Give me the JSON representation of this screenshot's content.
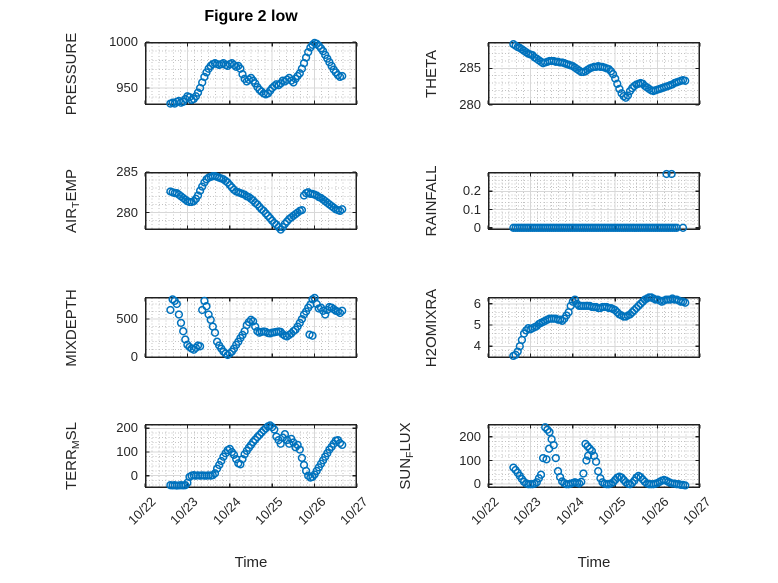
{
  "chart_data": {
    "type": "scatter",
    "title": "Figure 2 low",
    "marker_color": "#0072BD",
    "axes_color": "#202020",
    "x_axis": {
      "label": "Time",
      "ticklabels": [
        "10/22",
        "10/23",
        "10/24",
        "10/25",
        "10/26",
        "10/27"
      ],
      "xlim": [
        0,
        5
      ],
      "minor_divisions_per_day": 6
    },
    "subplots": [
      {
        "name": "pressure",
        "ylabel": "PRESSURE",
        "ylabel_parts": [
          {
            "text": "PRESSURE",
            "sub": false
          }
        ],
        "col": 0,
        "row": 0,
        "ylim": [
          931.5,
          1000
        ],
        "yticks": [
          950,
          1000
        ],
        "ytick_labels": [
          "950",
          "1000"
        ],
        "y_minor_step": 10,
        "x_start": 0.6,
        "x_step": 0.05,
        "y": [
          933,
          934,
          933,
          935,
          936,
          934,
          935,
          938,
          941,
          940,
          937,
          938,
          941,
          945,
          950,
          956,
          962,
          967,
          971,
          974,
          976,
          977,
          976,
          975,
          976,
          977,
          975,
          974,
          976,
          977,
          975,
          973,
          974,
          971,
          965,
          960,
          957,
          959,
          961,
          958,
          955,
          951,
          948,
          946,
          944,
          943,
          944,
          947,
          950,
          952,
          954,
          953,
          955,
          958,
          957,
          959,
          961,
          958,
          956,
          960,
          963,
          966,
          971,
          977,
          983,
          989,
          994,
          997,
          999,
          998,
          996,
          993,
          990,
          986,
          982,
          978,
          974,
          970,
          967,
          964,
          962,
          963
        ],
        "extra_points": []
      },
      {
        "name": "theta",
        "ylabel": "THETA",
        "ylabel_parts": [
          {
            "text": "THETA",
            "sub": false
          }
        ],
        "col": 1,
        "row": 0,
        "ylim": [
          280,
          288.6
        ],
        "yticks": [
          280,
          285
        ],
        "ytick_labels": [
          "280",
          "285"
        ],
        "y_minor_step": 1,
        "x_start": 0.6,
        "x_step": 0.05,
        "y": [
          288.3,
          288.1,
          287.9,
          287.8,
          287.6,
          287.4,
          287.2,
          287.0,
          286.9,
          286.8,
          286.5,
          286.3,
          286.1,
          285.9,
          285.7,
          285.8,
          285.9,
          286.0,
          286.0,
          286.0,
          285.9,
          285.9,
          285.8,
          285.8,
          285.7,
          285.6,
          285.5,
          285.4,
          285.3,
          285.1,
          284.9,
          284.7,
          284.5,
          284.5,
          284.6,
          284.8,
          285.0,
          285.1,
          285.2,
          285.2,
          285.3,
          285.2,
          285.2,
          285.1,
          285.0,
          284.9,
          284.6,
          284.2,
          283.6,
          282.9,
          282.2,
          281.6,
          281.2,
          281.0,
          281.3,
          281.9,
          282.3,
          282.6,
          282.8,
          282.9,
          283.0,
          282.9,
          282.6,
          282.4,
          282.2,
          282.0,
          281.9,
          282.0,
          282.1,
          282.2,
          282.3,
          282.4,
          282.5,
          282.6,
          282.7,
          282.8,
          283.0,
          283.1,
          283.2,
          283.3,
          283.4,
          283.3
        ],
        "extra_points": []
      },
      {
        "name": "air-temp",
        "ylabel": "AIR_TEMP",
        "ylabel_parts": [
          {
            "text": "AIR",
            "sub": false
          },
          {
            "text": "T",
            "sub": true
          },
          {
            "text": "EMP",
            "sub": false
          }
        ],
        "col": 0,
        "row": 1,
        "ylim": [
          277.85,
          285
        ],
        "yticks": [
          280,
          285
        ],
        "ytick_labels": [
          "280",
          "285"
        ],
        "y_minor_step": 1,
        "x_start": 0.6,
        "x_step": 0.05,
        "y": [
          282.6,
          282.5,
          282.4,
          282.4,
          282.2,
          282.0,
          281.8,
          281.6,
          281.4,
          281.3,
          281.3,
          281.4,
          281.7,
          282.1,
          282.7,
          283.2,
          283.7,
          284.1,
          284.3,
          284.4,
          284.5,
          284.5,
          284.4,
          284.3,
          284.2,
          284.1,
          283.9,
          283.7,
          283.4,
          283.1,
          282.8,
          282.6,
          282.5,
          282.4,
          282.3,
          282.2,
          282.0,
          281.9,
          281.7,
          281.5,
          281.2,
          281.0,
          280.7,
          280.4,
          280.2,
          279.9,
          279.6,
          279.3,
          279.0,
          278.7,
          278.5,
          278.2,
          277.9,
          278.2,
          278.6,
          278.9,
          279.2,
          279.4,
          279.6,
          279.8,
          280.0,
          280.2,
          280.3,
          282.1,
          282.4,
          282.5,
          282.3,
          282.3,
          282.2,
          282.1,
          281.9,
          281.8,
          281.6,
          281.4,
          281.2,
          281.0,
          280.8,
          280.6,
          280.4,
          280.3,
          280.2,
          280.4
        ],
        "extra_points": []
      },
      {
        "name": "rainfall",
        "ylabel": "RAINFALL",
        "ylabel_parts": [
          {
            "text": "RAINFALL",
            "sub": false
          }
        ],
        "col": 1,
        "row": 1,
        "ylim": [
          -0.012,
          0.306
        ],
        "yticks": [
          0,
          0.1,
          0.2
        ],
        "ytick_labels": [
          "0",
          "0.1",
          "0.2"
        ],
        "y_minor_step": 0.02,
        "x_start": 0.6,
        "x_step": 0.05,
        "y": [
          0,
          0,
          0,
          0,
          0,
          0,
          0,
          0,
          0,
          0,
          0,
          0,
          0,
          0,
          0,
          0,
          0,
          0,
          0,
          0,
          0,
          0,
          0,
          0,
          0,
          0,
          0,
          0,
          0,
          0,
          0,
          0,
          0,
          0,
          0,
          0,
          0,
          0,
          0,
          0,
          0,
          0,
          0,
          0,
          0,
          0,
          0,
          0,
          0,
          0,
          0,
          0,
          0,
          0,
          0,
          0,
          0,
          0,
          0,
          0,
          0,
          0,
          0,
          0,
          0,
          0,
          0,
          0,
          0,
          0,
          0,
          0,
          0,
          0,
          0,
          0,
          0,
          0
        ],
        "extra_points": [
          [
            4.21,
            0.295
          ],
          [
            4.33,
            0.295
          ],
          [
            4.6,
            0
          ]
        ]
      },
      {
        "name": "mixdepth",
        "ylabel": "MIXDEPTH",
        "ylabel_parts": [
          {
            "text": "MIXDEPTH",
            "sub": false
          }
        ],
        "col": 0,
        "row": 2,
        "ylim": [
          -15,
          792
        ],
        "yticks": [
          0,
          500
        ],
        "ytick_labels": [
          "0",
          "500"
        ],
        "y_minor_step": 100,
        "x_start": 0.6,
        "x_step": 0.05,
        "y": [
          620,
          760,
          740,
          700,
          560,
          450,
          340,
          230,
          160,
          130,
          110,
          95,
          120,
          150,
          140,
          620,
          740,
          670,
          560,
          490,
          400,
          320,
          200,
          150,
          110,
          70,
          45,
          25,
          45,
          70,
          110,
          160,
          200,
          250,
          290,
          340,
          420,
          460,
          490,
          470,
          400,
          340,
          320,
          330,
          335,
          330,
          315,
          310,
          320,
          325,
          330,
          335,
          330,
          300,
          280,
          270,
          290,
          310,
          340,
          360,
          400,
          450,
          500,
          560,
          600,
          650,
          690,
          760,
          780,
          700,
          640,
          650,
          610,
          560,
          620,
          660,
          650,
          630,
          610,
          600,
          580,
          610
        ],
        "extra_points": [
          [
            3.88,
            295
          ],
          [
            3.95,
            280
          ]
        ]
      },
      {
        "name": "h2omixra",
        "ylabel": "H2OMIXRA",
        "ylabel_parts": [
          {
            "text": "H2OMIXRA",
            "sub": false
          }
        ],
        "col": 1,
        "row": 2,
        "ylim": [
          3.45,
          6.32
        ],
        "yticks": [
          4,
          5,
          6
        ],
        "ytick_labels": [
          "4",
          "5",
          "6"
        ],
        "y_minor_step": 0.2,
        "x_start": 0.6,
        "x_step": 0.05,
        "y": [
          3.55,
          3.6,
          3.75,
          4.0,
          4.3,
          4.6,
          4.75,
          4.85,
          4.8,
          4.85,
          4.9,
          4.95,
          5.05,
          5.1,
          5.15,
          5.2,
          5.25,
          5.3,
          5.3,
          5.3,
          5.3,
          5.25,
          5.25,
          5.2,
          5.3,
          5.45,
          5.6,
          5.9,
          6.1,
          6.2,
          6.0,
          5.9,
          5.9,
          5.9,
          5.9,
          5.9,
          5.9,
          5.85,
          5.85,
          5.85,
          5.8,
          5.8,
          5.85,
          5.85,
          5.85,
          5.8,
          5.8,
          5.75,
          5.7,
          5.6,
          5.5,
          5.45,
          5.4,
          5.4,
          5.45,
          5.5,
          5.6,
          5.7,
          5.8,
          5.9,
          6.0,
          6.1,
          6.2,
          6.25,
          6.3,
          6.3,
          6.25,
          6.2,
          6.2,
          6.15,
          6.1,
          6.15,
          6.2,
          6.2,
          6.2,
          6.25,
          6.2,
          6.2,
          6.15,
          6.1,
          6.1,
          6.05
        ],
        "extra_points": []
      },
      {
        "name": "terr-msl",
        "ylabel": "TERR_MSL",
        "ylabel_parts": [
          {
            "text": "TERR",
            "sub": false
          },
          {
            "text": "M",
            "sub": true
          },
          {
            "text": "SL",
            "sub": false
          }
        ],
        "col": 0,
        "row": 3,
        "ylim": [
          -52,
          218
        ],
        "yticks": [
          0,
          100,
          200
        ],
        "ytick_labels": [
          "0",
          "100",
          "200"
        ],
        "y_minor_step": 20,
        "x_start": 0.6,
        "x_step": 0.05,
        "y": [
          -40,
          -41,
          -40,
          -42,
          -41,
          -40,
          -41,
          -40,
          -30,
          -5,
          0,
          2,
          0,
          1,
          0,
          1,
          0,
          0,
          1,
          0,
          2,
          10,
          30,
          45,
          62,
          80,
          95,
          108,
          113,
          100,
          88,
          70,
          52,
          48,
          70,
          90,
          105,
          118,
          130,
          142,
          152,
          163,
          172,
          182,
          192,
          200,
          208,
          212,
          205,
          195,
          165,
          150,
          135,
          160,
          175,
          150,
          135,
          155,
          140,
          120,
          130,
          110,
          75,
          45,
          20,
          0,
          -8,
          -5,
          5,
          20,
          35,
          50,
          65,
          80,
          95,
          110,
          122,
          135,
          148,
          150,
          138,
          130
        ],
        "extra_points": []
      },
      {
        "name": "sun-flux",
        "ylabel": "SUN_FLUX",
        "ylabel_parts": [
          {
            "text": "SUN",
            "sub": false
          },
          {
            "text": "F",
            "sub": true
          },
          {
            "text": "LUX",
            "sub": false
          }
        ],
        "col": 1,
        "row": 3,
        "ylim": [
          -16,
          254
        ],
        "yticks": [
          0,
          100,
          200
        ],
        "ytick_labels": [
          "0",
          "100",
          "200"
        ],
        "y_minor_step": 20,
        "x_start": 0.6,
        "x_step": 0.05,
        "y": [
          70,
          60,
          48,
          35,
          22,
          10,
          3,
          0,
          0,
          0,
          2,
          8,
          25,
          40,
          110,
          240,
          230,
          220,
          190,
          165,
          110,
          55,
          30,
          12,
          4,
          0,
          0,
          2,
          5,
          8,
          5,
          3,
          10,
          45,
          170,
          160,
          150,
          140,
          120,
          95,
          55,
          25,
          8,
          2,
          0,
          0,
          3,
          8,
          18,
          28,
          32,
          28,
          18,
          8,
          2,
          0,
          5,
          15,
          28,
          35,
          30,
          20,
          10,
          3,
          0,
          0,
          0,
          2,
          5,
          10,
          15,
          18,
          15,
          10,
          6,
          3,
          2,
          0,
          0,
          -3,
          -3,
          -5
        ],
        "extra_points": [
          [
            1.38,
            105
          ],
          [
            1.44,
            150
          ],
          [
            2.32,
            100
          ],
          [
            2.36,
            120
          ]
        ]
      }
    ]
  }
}
